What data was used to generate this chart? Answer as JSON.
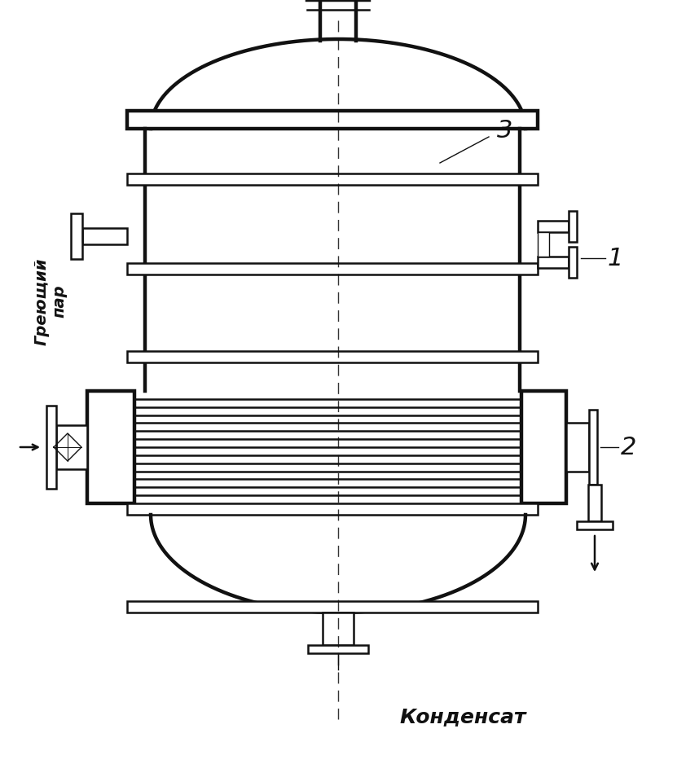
{
  "bg_color": "#ffffff",
  "line_color": "#111111",
  "lw_thick": 3.2,
  "lw_medium": 1.8,
  "lw_thin": 1.0,
  "label_grekushiy": "Греющий\nпар",
  "label_kondensat": "Конденсат",
  "label_1": "1",
  "label_2": "2",
  "label_3": "3"
}
